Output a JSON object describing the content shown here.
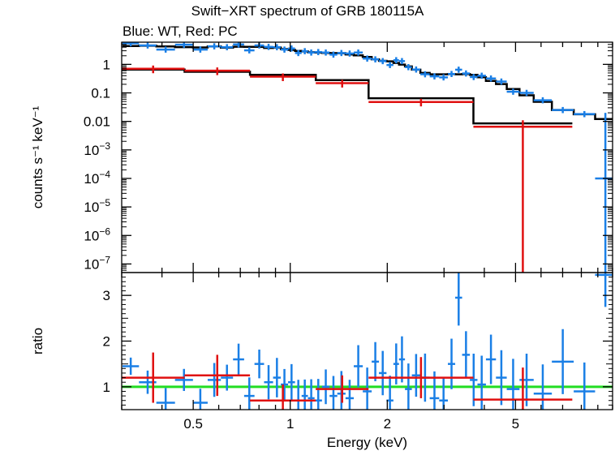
{
  "title": "Swift−XRT spectrum of GRB 180115A",
  "subtitle": "Blue: WT, Red: PC",
  "colors": {
    "wt": "#1a7fe6",
    "pc": "#e01010",
    "model": "#000000",
    "unity": "#22dd22"
  },
  "chart_data": [
    {
      "type": "scatter",
      "panel": "spectrum",
      "ylabel": "counts s⁻¹ keV⁻¹",
      "xscale": "log",
      "yscale": "log",
      "xlim": [
        0.3,
        10
      ],
      "ylim": [
        5e-08,
        6
      ],
      "y_ticks": [
        {
          "v": 1,
          "label": "1"
        },
        {
          "v": 0.1,
          "label": "0.1"
        },
        {
          "v": 0.01,
          "label": "0.01"
        },
        {
          "v": 0.001,
          "base": "10",
          "exp": "−3"
        },
        {
          "v": 0.0001,
          "base": "10",
          "exp": "−4"
        },
        {
          "v": 1e-05,
          "base": "10",
          "exp": "−5"
        },
        {
          "v": 1e-06,
          "base": "10",
          "exp": "−6"
        },
        {
          "v": 1e-07,
          "base": "10",
          "exp": "−7"
        }
      ],
      "series": [
        {
          "name": "WT",
          "color": "#1a7fe6",
          "points": [
            {
              "x": 0.32,
              "y": 5.5
            },
            {
              "x": 0.36,
              "y": 4.6
            },
            {
              "x": 0.41,
              "y": 3.3
            },
            {
              "x": 0.47,
              "y": 4.9
            },
            {
              "x": 0.53,
              "y": 3.3
            },
            {
              "x": 0.58,
              "y": 4.3
            },
            {
              "x": 0.64,
              "y": 4.0
            },
            {
              "x": 0.69,
              "y": 5.0
            },
            {
              "x": 0.75,
              "y": 3.1
            },
            {
              "x": 0.8,
              "y": 4.6
            },
            {
              "x": 0.86,
              "y": 4.1
            },
            {
              "x": 0.91,
              "y": 4.0
            },
            {
              "x": 0.96,
              "y": 3.3
            },
            {
              "x": 1.01,
              "y": 3.6
            },
            {
              "x": 1.06,
              "y": 2.5
            },
            {
              "x": 1.11,
              "y": 2.9
            },
            {
              "x": 1.16,
              "y": 2.6
            },
            {
              "x": 1.22,
              "y": 2.7
            },
            {
              "x": 1.29,
              "y": 2.6
            },
            {
              "x": 1.36,
              "y": 2.2
            },
            {
              "x": 1.44,
              "y": 2.5
            },
            {
              "x": 1.53,
              "y": 2.4
            },
            {
              "x": 1.62,
              "y": 2.6
            },
            {
              "x": 1.74,
              "y": 1.6
            },
            {
              "x": 1.84,
              "y": 1.5
            },
            {
              "x": 1.93,
              "y": 1.3
            },
            {
              "x": 2.05,
              "y": 0.95
            },
            {
              "x": 2.13,
              "y": 1.4
            },
            {
              "x": 2.22,
              "y": 1.3
            },
            {
              "x": 2.32,
              "y": 0.8
            },
            {
              "x": 2.45,
              "y": 0.66
            },
            {
              "x": 2.62,
              "y": 0.45
            },
            {
              "x": 2.8,
              "y": 0.38
            },
            {
              "x": 3.0,
              "y": 0.35
            },
            {
              "x": 3.17,
              "y": 0.46
            },
            {
              "x": 3.33,
              "y": 0.65
            },
            {
              "x": 3.5,
              "y": 0.48
            },
            {
              "x": 3.72,
              "y": 0.36
            },
            {
              "x": 3.9,
              "y": 0.4
            },
            {
              "x": 4.2,
              "y": 0.32
            },
            {
              "x": 4.5,
              "y": 0.25
            },
            {
              "x": 4.9,
              "y": 0.11
            },
            {
              "x": 5.4,
              "y": 0.1
            },
            {
              "x": 6.0,
              "y": 0.055
            },
            {
              "x": 7.0,
              "y": 0.025
            },
            {
              "x": 8.2,
              "y": 0.018
            },
            {
              "x": 9.5,
              "y": 0.0001
            }
          ]
        },
        {
          "name": "PC",
          "color": "#e01010",
          "points": [
            {
              "x": 0.37,
              "y": 0.7
            },
            {
              "x": 0.6,
              "y": 0.6
            },
            {
              "x": 0.95,
              "y": 0.37
            },
            {
              "x": 1.45,
              "y": 0.22
            },
            {
              "x": 2.75,
              "y": 0.048
            },
            {
              "x": 5.4,
              "y": 0.0065
            }
          ]
        },
        {
          "name": "model",
          "color": "#000000"
        }
      ]
    },
    {
      "type": "scatter",
      "panel": "ratio",
      "ylabel": "ratio",
      "xlabel": "Energy (keV)",
      "xscale": "log",
      "xlim": [
        0.3,
        10
      ],
      "ylim": [
        0.5,
        3.5
      ],
      "x_ticks": [
        {
          "v": 0.5,
          "label": "0.5"
        },
        {
          "v": 1,
          "label": "1"
        },
        {
          "v": 2,
          "label": "2"
        },
        {
          "v": 5,
          "label": "5"
        }
      ],
      "y_ticks": [
        {
          "v": 1,
          "label": "1"
        },
        {
          "v": 2,
          "label": "2"
        },
        {
          "v": 3,
          "label": "3"
        }
      ],
      "series": [
        {
          "name": "WT",
          "color": "#1a7fe6",
          "points": [
            {
              "x": 0.32,
              "y": 1.45
            },
            {
              "x": 0.36,
              "y": 1.1
            },
            {
              "x": 0.41,
              "y": 0.65
            },
            {
              "x": 0.47,
              "y": 1.15
            },
            {
              "x": 0.53,
              "y": 0.65
            },
            {
              "x": 0.58,
              "y": 1.15
            },
            {
              "x": 0.64,
              "y": 1.2
            },
            {
              "x": 0.69,
              "y": 1.6
            },
            {
              "x": 0.75,
              "y": 0.8
            },
            {
              "x": 0.8,
              "y": 1.5
            },
            {
              "x": 0.86,
              "y": 1.1
            },
            {
              "x": 0.91,
              "y": 1.2
            },
            {
              "x": 0.96,
              "y": 1.05
            },
            {
              "x": 1.01,
              "y": 1.1
            },
            {
              "x": 1.06,
              "y": 0.7
            },
            {
              "x": 1.11,
              "y": 0.8
            },
            {
              "x": 1.16,
              "y": 0.75
            },
            {
              "x": 1.22,
              "y": 0.7
            },
            {
              "x": 1.29,
              "y": 1.0
            },
            {
              "x": 1.36,
              "y": 0.8
            },
            {
              "x": 1.44,
              "y": 0.85
            },
            {
              "x": 1.53,
              "y": 0.75
            },
            {
              "x": 1.62,
              "y": 1.45
            },
            {
              "x": 1.74,
              "y": 0.9
            },
            {
              "x": 1.84,
              "y": 1.55
            },
            {
              "x": 1.93,
              "y": 1.3
            },
            {
              "x": 2.05,
              "y": 0.7
            },
            {
              "x": 2.13,
              "y": 1.5
            },
            {
              "x": 2.22,
              "y": 1.6
            },
            {
              "x": 2.32,
              "y": 0.95
            },
            {
              "x": 2.45,
              "y": 1.25
            },
            {
              "x": 2.62,
              "y": 1.2
            },
            {
              "x": 2.8,
              "y": 0.75
            },
            {
              "x": 3.0,
              "y": 0.7
            },
            {
              "x": 3.17,
              "y": 1.5
            },
            {
              "x": 3.33,
              "y": 2.95
            },
            {
              "x": 3.5,
              "y": 1.7
            },
            {
              "x": 3.72,
              "y": 1.15
            },
            {
              "x": 3.9,
              "y": 1.05
            },
            {
              "x": 4.2,
              "y": 1.6
            },
            {
              "x": 4.5,
              "y": 1.2
            },
            {
              "x": 4.9,
              "y": 0.95
            },
            {
              "x": 5.4,
              "y": 1.15
            },
            {
              "x": 6.0,
              "y": 0.85
            },
            {
              "x": 7.0,
              "y": 1.55
            },
            {
              "x": 8.2,
              "y": 0.9
            },
            {
              "x": 9.5,
              "y": 3.45
            }
          ]
        },
        {
          "name": "PC",
          "color": "#e01010",
          "points": [
            {
              "x": 0.37,
              "y": 1.2
            },
            {
              "x": 0.6,
              "y": 1.25
            },
            {
              "x": 0.95,
              "y": 0.7
            },
            {
              "x": 1.45,
              "y": 0.95
            },
            {
              "x": 2.75,
              "y": 1.2
            },
            {
              "x": 5.4,
              "y": 0.72
            }
          ]
        },
        {
          "name": "unity",
          "color": "#22dd22",
          "constant": 1
        }
      ]
    }
  ]
}
